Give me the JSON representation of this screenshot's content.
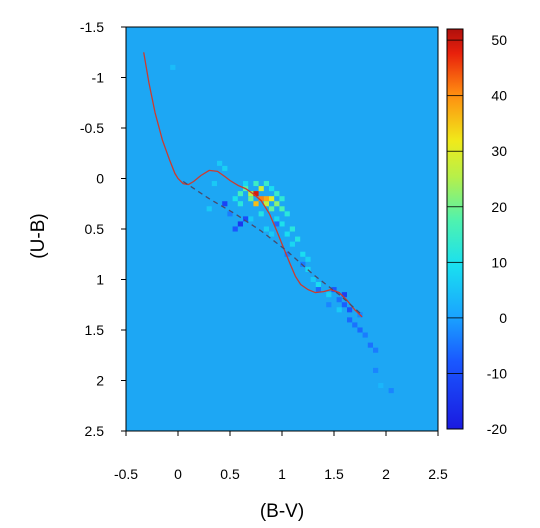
{
  "chart_data": {
    "type": "heatmap",
    "title": "",
    "xlabel": "(B-V)",
    "ylabel": "(U-B)",
    "xlim": [
      -0.5,
      2.5
    ],
    "ylim": [
      2.5,
      -1.5
    ],
    "y_inverted": true,
    "x_ticks": [
      -0.5,
      0,
      0.5,
      1,
      1.5,
      2,
      2.5
    ],
    "x_tick_labels": [
      "-0.5",
      "0",
      "0.5",
      "1",
      "1.5",
      "2",
      "2.5"
    ],
    "y_ticks": [
      -1.5,
      -1,
      -0.5,
      0,
      0.5,
      1,
      1.5,
      2,
      2.5
    ],
    "y_tick_labels": [
      "-1.5",
      "-1",
      "-0.5",
      "0",
      "0.5",
      "1",
      "1.5",
      "2",
      "2.5"
    ],
    "background_value": 0,
    "colorbar": {
      "range": [
        -20,
        52
      ],
      "ticks": [
        -20,
        -10,
        0,
        10,
        20,
        30,
        40,
        50
      ],
      "tick_labels": [
        "-20",
        "-10",
        "0",
        "10",
        "20",
        "30",
        "40",
        "50"
      ],
      "colormap": "jet"
    },
    "cells": [
      {
        "x": 0.8,
        "y": 0.1,
        "v": 28
      },
      {
        "x": 0.7,
        "y": 0.15,
        "v": 26
      },
      {
        "x": 0.75,
        "y": 0.15,
        "v": 49
      },
      {
        "x": 0.8,
        "y": 0.2,
        "v": 41
      },
      {
        "x": 0.85,
        "y": 0.2,
        "v": 38
      },
      {
        "x": 0.9,
        "y": 0.2,
        "v": 30
      },
      {
        "x": 0.75,
        "y": 0.25,
        "v": 36
      },
      {
        "x": 0.85,
        "y": 0.25,
        "v": 27
      },
      {
        "x": 0.95,
        "y": 0.25,
        "v": 22
      },
      {
        "x": 0.65,
        "y": 0.1,
        "v": 18
      },
      {
        "x": 0.6,
        "y": 0.15,
        "v": 16
      },
      {
        "x": 0.7,
        "y": 0.2,
        "v": 20
      },
      {
        "x": 0.9,
        "y": 0.3,
        "v": 19
      },
      {
        "x": 1.0,
        "y": 0.3,
        "v": 17
      },
      {
        "x": 0.85,
        "y": 0.05,
        "v": 14
      },
      {
        "x": 0.75,
        "y": 0.05,
        "v": 15
      },
      {
        "x": 0.95,
        "y": 0.15,
        "v": 14
      },
      {
        "x": 1.0,
        "y": 0.2,
        "v": 13
      },
      {
        "x": 0.6,
        "y": 0.25,
        "v": 12
      },
      {
        "x": 0.55,
        "y": 0.2,
        "v": 10
      },
      {
        "x": 0.8,
        "y": 0.35,
        "v": 11
      },
      {
        "x": 1.05,
        "y": 0.35,
        "v": 12
      },
      {
        "x": 1.0,
        "y": 0.45,
        "v": 10
      },
      {
        "x": 1.05,
        "y": 0.55,
        "v": 9
      },
      {
        "x": 1.1,
        "y": 0.5,
        "v": 12
      },
      {
        "x": 1.1,
        "y": 0.65,
        "v": 8
      },
      {
        "x": 1.15,
        "y": 0.6,
        "v": 11
      },
      {
        "x": 1.2,
        "y": 0.75,
        "v": 9
      },
      {
        "x": 1.25,
        "y": 0.8,
        "v": 7
      },
      {
        "x": 1.25,
        "y": 0.9,
        "v": 8
      },
      {
        "x": 1.3,
        "y": 1.0,
        "v": 6
      },
      {
        "x": 1.35,
        "y": 1.05,
        "v": 9
      },
      {
        "x": 0.95,
        "y": 0.4,
        "v": 8
      },
      {
        "x": 0.85,
        "y": 0.5,
        "v": 7
      },
      {
        "x": 0.9,
        "y": 0.55,
        "v": 6
      },
      {
        "x": 0.7,
        "y": 0.4,
        "v": 6
      },
      {
        "x": 0.65,
        "y": 0.05,
        "v": 8
      },
      {
        "x": 0.9,
        "y": 0.1,
        "v": 9
      },
      {
        "x": 0.4,
        "y": -0.15,
        "v": 6
      },
      {
        "x": 0.45,
        "y": -0.1,
        "v": 7
      },
      {
        "x": 0.35,
        "y": 0.05,
        "v": 6
      },
      {
        "x": 0.3,
        "y": 0.3,
        "v": 6
      },
      {
        "x": 1.45,
        "y": 1.15,
        "v": 7
      },
      {
        "x": 1.55,
        "y": 1.3,
        "v": 6
      },
      {
        "x": 0.45,
        "y": 0.25,
        "v": -12
      },
      {
        "x": 0.6,
        "y": 0.45,
        "v": -14
      },
      {
        "x": 0.65,
        "y": 0.4,
        "v": -10
      },
      {
        "x": 0.55,
        "y": 0.5,
        "v": -8
      },
      {
        "x": 0.95,
        "y": 0.45,
        "v": -6
      },
      {
        "x": 1.5,
        "y": 1.1,
        "v": -8
      },
      {
        "x": 1.6,
        "y": 1.15,
        "v": -12
      },
      {
        "x": 1.55,
        "y": 1.2,
        "v": -5
      },
      {
        "x": 1.6,
        "y": 1.25,
        "v": -7
      },
      {
        "x": 1.65,
        "y": 1.3,
        "v": -9
      },
      {
        "x": 1.65,
        "y": 1.4,
        "v": -6
      },
      {
        "x": 1.7,
        "y": 1.45,
        "v": -5
      },
      {
        "x": 1.75,
        "y": 1.5,
        "v": -6
      },
      {
        "x": 1.8,
        "y": 1.55,
        "v": -4
      },
      {
        "x": 1.85,
        "y": 1.65,
        "v": -5
      },
      {
        "x": 1.9,
        "y": 1.7,
        "v": -4
      },
      {
        "x": 1.35,
        "y": 1.1,
        "v": -6
      },
      {
        "x": 1.2,
        "y": 0.85,
        "v": -4
      },
      {
        "x": 1.05,
        "y": 0.75,
        "v": -4
      },
      {
        "x": 0.5,
        "y": 0.35,
        "v": -4
      },
      {
        "x": 1.45,
        "y": 1.25,
        "v": -3
      },
      {
        "x": 1.75,
        "y": 1.35,
        "v": -3
      },
      {
        "x": 1.9,
        "y": 1.9,
        "v": -3
      },
      {
        "x": 2.05,
        "y": 2.1,
        "v": -3
      },
      {
        "x": -0.05,
        "y": -1.1,
        "v": 4
      },
      {
        "x": 1.95,
        "y": 2.05,
        "v": 3
      }
    ],
    "series": [
      {
        "type": "line",
        "color": "#cc3b2e",
        "x": [
          -0.33,
          -0.28,
          -0.22,
          -0.15,
          -0.08,
          -0.03,
          0.0,
          0.05,
          0.1,
          0.15,
          0.22,
          0.3,
          0.38,
          0.45,
          0.5,
          0.58,
          0.65,
          0.72,
          0.8,
          0.88,
          0.95,
          1.02,
          1.08,
          1.13,
          1.18,
          1.25,
          1.32,
          1.4,
          1.47,
          1.55,
          1.62,
          1.7,
          1.77
        ],
        "y": [
          -1.25,
          -0.95,
          -0.65,
          -0.38,
          -0.18,
          -0.05,
          0.0,
          0.05,
          0.06,
          0.03,
          -0.03,
          -0.08,
          -0.07,
          -0.02,
          0.02,
          0.07,
          0.1,
          0.15,
          0.22,
          0.35,
          0.52,
          0.7,
          0.85,
          0.97,
          1.05,
          1.1,
          1.13,
          1.12,
          1.1,
          1.13,
          1.2,
          1.3,
          1.37
        ]
      },
      {
        "type": "line",
        "color": "#4a4a6a",
        "dashed": true,
        "x": [
          0.05,
          0.3,
          0.55,
          0.8,
          1.05,
          1.3,
          1.55,
          1.77
        ],
        "y": [
          0.03,
          0.2,
          0.35,
          0.52,
          0.72,
          0.95,
          1.15,
          1.35
        ]
      }
    ]
  }
}
